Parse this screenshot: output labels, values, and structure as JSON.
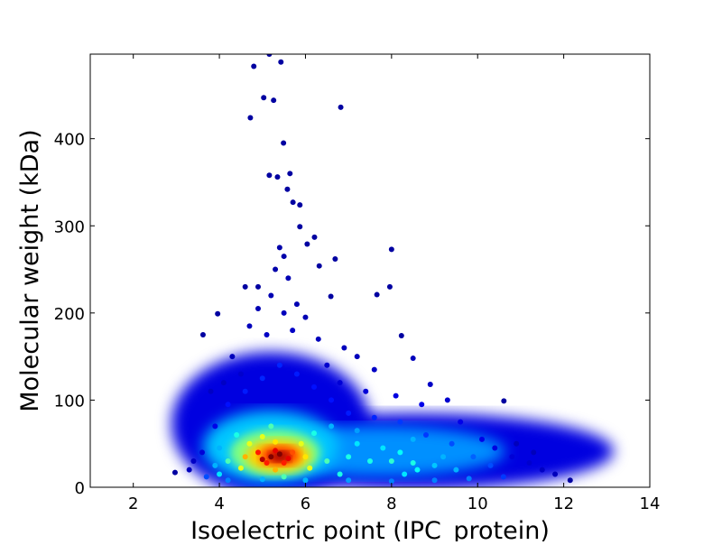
{
  "chart_data": {
    "type": "scatter",
    "title": "",
    "xlabel": "Isoelectric point (IPC_protein)",
    "ylabel": "Molecular weight (kDa)",
    "xlim": [
      1,
      14
    ],
    "ylim": [
      0,
      497
    ],
    "xticks": [
      2,
      4,
      6,
      8,
      10,
      12,
      14
    ],
    "yticks": [
      0,
      100,
      200,
      300,
      400
    ],
    "grid": false,
    "legend": "none",
    "color_encoding": "point density (jet colormap: blue low, red high)",
    "colormap": [
      "#00008f",
      "#0000ff",
      "#0080ff",
      "#00ffff",
      "#80ff80",
      "#ffff00",
      "#ff8000",
      "#ff0000",
      "#800000"
    ],
    "points_format": [
      "pI",
      "kDa",
      "relative density"
    ],
    "points": [
      [
        5.16,
        497,
        0.02
      ],
      [
        4.8,
        483,
        0.02
      ],
      [
        5.43,
        488,
        0.02
      ],
      [
        5.03,
        447,
        0.02
      ],
      [
        5.26,
        444,
        0.02
      ],
      [
        4.72,
        424,
        0.02
      ],
      [
        5.49,
        395,
        0.02
      ],
      [
        6.82,
        436,
        0.02
      ],
      [
        5.16,
        358,
        0.02
      ],
      [
        5.35,
        356,
        0.02
      ],
      [
        5.64,
        360,
        0.02
      ],
      [
        5.58,
        342,
        0.02
      ],
      [
        5.71,
        327,
        0.02
      ],
      [
        5.87,
        324,
        0.02
      ],
      [
        5.87,
        299,
        0.02
      ],
      [
        6.21,
        287,
        0.02
      ],
      [
        6.04,
        279,
        0.02
      ],
      [
        8.0,
        273,
        0.02
      ],
      [
        6.69,
        262,
        0.02
      ],
      [
        6.32,
        254,
        0.02
      ],
      [
        3.96,
        199,
        0.02
      ],
      [
        3.62,
        175,
        0.02
      ],
      [
        7.96,
        230,
        0.02
      ],
      [
        7.66,
        221,
        0.02
      ],
      [
        8.23,
        174,
        0.02
      ],
      [
        10.61,
        99,
        0.02
      ],
      [
        12.15,
        8,
        0.02
      ],
      [
        2.97,
        17,
        0.02
      ],
      [
        6.59,
        219,
        0.02
      ],
      [
        4.9,
        230,
        0.02
      ],
      [
        4.6,
        230,
        0.02
      ],
      [
        5.4,
        275,
        0.03
      ],
      [
        5.5,
        265,
        0.03
      ],
      [
        5.3,
        250,
        0.03
      ],
      [
        5.6,
        240,
        0.04
      ],
      [
        5.2,
        220,
        0.04
      ],
      [
        5.8,
        210,
        0.04
      ],
      [
        4.9,
        205,
        0.04
      ],
      [
        6.0,
        195,
        0.04
      ],
      [
        5.5,
        200,
        0.05
      ],
      [
        4.7,
        185,
        0.05
      ],
      [
        6.3,
        170,
        0.05
      ],
      [
        5.1,
        175,
        0.06
      ],
      [
        5.7,
        180,
        0.06
      ],
      [
        6.9,
        160,
        0.05
      ],
      [
        7.2,
        150,
        0.05
      ],
      [
        7.6,
        135,
        0.06
      ],
      [
        8.5,
        148,
        0.05
      ],
      [
        8.9,
        118,
        0.06
      ],
      [
        9.3,
        100,
        0.07
      ],
      [
        4.3,
        150,
        0.05
      ],
      [
        4.1,
        120,
        0.06
      ],
      [
        3.8,
        110,
        0.06
      ],
      [
        4.5,
        130,
        0.07
      ],
      [
        6.5,
        140,
        0.07
      ],
      [
        6.8,
        120,
        0.08
      ],
      [
        7.4,
        110,
        0.08
      ],
      [
        8.1,
        105,
        0.09
      ],
      [
        8.7,
        95,
        0.1
      ],
      [
        9.6,
        75,
        0.1
      ],
      [
        10.1,
        55,
        0.1
      ],
      [
        10.4,
        45,
        0.09
      ],
      [
        10.8,
        35,
        0.08
      ],
      [
        11.2,
        28,
        0.07
      ],
      [
        11.5,
        20,
        0.06
      ],
      [
        11.8,
        15,
        0.05
      ],
      [
        11.3,
        40,
        0.05
      ],
      [
        10.9,
        50,
        0.05
      ],
      [
        3.4,
        30,
        0.06
      ],
      [
        3.3,
        20,
        0.05
      ],
      [
        3.6,
        40,
        0.08
      ],
      [
        3.9,
        70,
        0.1
      ],
      [
        4.2,
        95,
        0.14
      ],
      [
        4.6,
        110,
        0.15
      ],
      [
        5.0,
        125,
        0.16
      ],
      [
        5.4,
        140,
        0.16
      ],
      [
        5.8,
        130,
        0.15
      ],
      [
        6.2,
        115,
        0.14
      ],
      [
        6.6,
        100,
        0.14
      ],
      [
        7.0,
        85,
        0.15
      ],
      [
        7.6,
        80,
        0.16
      ],
      [
        8.2,
        75,
        0.18
      ],
      [
        8.8,
        60,
        0.18
      ],
      [
        9.4,
        50,
        0.2
      ],
      [
        9.9,
        35,
        0.22
      ],
      [
        10.3,
        25,
        0.2
      ],
      [
        10.6,
        12,
        0.18
      ],
      [
        9.8,
        10,
        0.25
      ],
      [
        9.0,
        8,
        0.25
      ],
      [
        8.0,
        7,
        0.25
      ],
      [
        7.0,
        8,
        0.28
      ],
      [
        6.0,
        8,
        0.3
      ],
      [
        5.0,
        9,
        0.3
      ],
      [
        4.2,
        8,
        0.25
      ],
      [
        3.7,
        12,
        0.2
      ],
      [
        4.0,
        45,
        0.3
      ],
      [
        6.6,
        70,
        0.3
      ],
      [
        7.2,
        65,
        0.28
      ],
      [
        8.5,
        55,
        0.3
      ],
      [
        9.2,
        35,
        0.3
      ],
      [
        9.5,
        20,
        0.3
      ],
      [
        3.9,
        25,
        0.3
      ],
      [
        4.2,
        30,
        0.45
      ],
      [
        6.5,
        30,
        0.45
      ],
      [
        5.2,
        70,
        0.45
      ],
      [
        4.4,
        60,
        0.4
      ],
      [
        6.2,
        62,
        0.4
      ],
      [
        7.0,
        35,
        0.4
      ],
      [
        7.5,
        30,
        0.4
      ],
      [
        8.0,
        30,
        0.42
      ],
      [
        8.5,
        28,
        0.4
      ],
      [
        8.2,
        40,
        0.38
      ],
      [
        7.2,
        50,
        0.35
      ],
      [
        9.0,
        25,
        0.32
      ],
      [
        4.0,
        15,
        0.35
      ],
      [
        6.8,
        15,
        0.4
      ],
      [
        8.3,
        15,
        0.35
      ],
      [
        5.5,
        12,
        0.45
      ],
      [
        7.8,
        45,
        0.35
      ],
      [
        8.6,
        20,
        0.38
      ],
      [
        4.6,
        35,
        0.7
      ],
      [
        6.0,
        35,
        0.65
      ],
      [
        5.3,
        52,
        0.65
      ],
      [
        5.3,
        20,
        0.7
      ],
      [
        4.7,
        50,
        0.6
      ],
      [
        5.9,
        50,
        0.6
      ],
      [
        4.5,
        22,
        0.6
      ],
      [
        6.1,
        22,
        0.6
      ],
      [
        5.0,
        58,
        0.6
      ],
      [
        5.2,
        35,
        1.0
      ],
      [
        5.4,
        38,
        1.0
      ],
      [
        5.0,
        32,
        0.95
      ],
      [
        5.6,
        33,
        0.9
      ],
      [
        5.3,
        42,
        0.9
      ],
      [
        4.9,
        40,
        0.85
      ],
      [
        5.7,
        40,
        0.8
      ],
      [
        5.1,
        28,
        0.85
      ],
      [
        5.5,
        28,
        0.85
      ]
    ]
  }
}
